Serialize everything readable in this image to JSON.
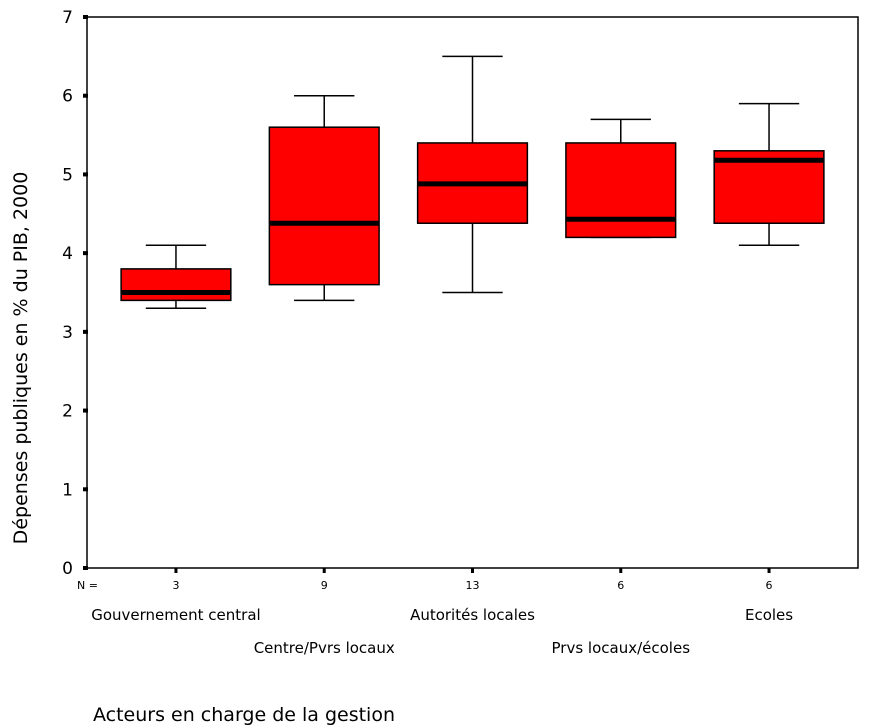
{
  "chart_data": {
    "type": "boxplot",
    "xlabel": "Acteurs en charge de la gestion",
    "ylabel": "Dépenses publiques en % du PIB, 2000",
    "ylim": [
      0,
      7
    ],
    "yticks": [
      "0",
      "1",
      "2",
      "3",
      "4",
      "5",
      "6",
      "7"
    ],
    "n_prefix": "N =",
    "box_color": "#ff0000",
    "median_color": "#000000",
    "categories": [
      {
        "label": "Gouvernement central",
        "n": "3",
        "min": 3.3,
        "q1": 3.4,
        "median": 3.5,
        "q3": 3.8,
        "max": 4.1
      },
      {
        "label": "Centre/Pvrs locaux",
        "n": "9",
        "min": 3.4,
        "q1": 3.6,
        "median": 4.38,
        "q3": 5.6,
        "max": 6.0
      },
      {
        "label": "Autorités locales",
        "n": "13",
        "min": 3.5,
        "q1": 4.38,
        "median": 4.88,
        "q3": 5.4,
        "max": 6.5
      },
      {
        "label": "Prvs locaux/écoles",
        "n": "6",
        "min": 4.2,
        "q1": 4.2,
        "median": 4.43,
        "q3": 5.4,
        "max": 5.7
      },
      {
        "label": "Ecoles",
        "n": "6",
        "min": 4.1,
        "q1": 4.38,
        "median": 5.18,
        "q3": 5.3,
        "max": 5.9
      }
    ]
  }
}
